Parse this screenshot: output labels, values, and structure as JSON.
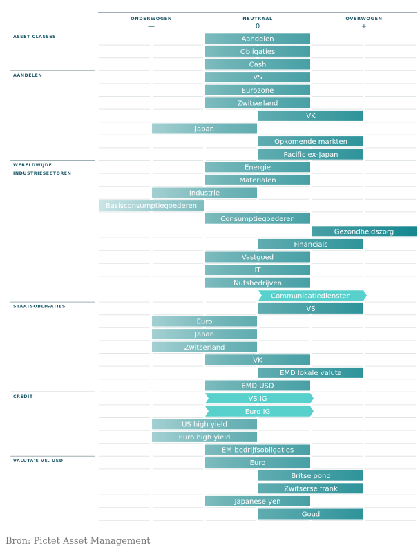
{
  "chart_data": {
    "type": "bar",
    "levels": [
      {
        "name": "ONDERWOGEN",
        "symbol": "—"
      },
      {
        "name": "NEUTRAAL",
        "symbol": "0"
      },
      {
        "name": "OVERWOGEN",
        "symbol": "+"
      }
    ],
    "sections": [
      {
        "title": "ASSET CLASSES",
        "rows": [
          {
            "label": "Aandelen",
            "from": 0,
            "to": 2
          },
          {
            "label": "Obligaties",
            "from": 0,
            "to": 2
          },
          {
            "label": "Cash",
            "from": 0,
            "to": 2
          }
        ]
      },
      {
        "title": "AANDELEN",
        "rows": [
          {
            "label": "VS",
            "from": 0,
            "to": 2
          },
          {
            "label": "Eurozone",
            "from": 0,
            "to": 2
          },
          {
            "label": "Zwitserland",
            "from": 0,
            "to": 2
          },
          {
            "label": "VK",
            "from": 1,
            "to": 3
          },
          {
            "label": "Japan",
            "from": -1,
            "to": 1
          },
          {
            "label": "Opkomende markten",
            "from": 1,
            "to": 3
          },
          {
            "label": "Pacific ex-Japan",
            "from": 1,
            "to": 3
          }
        ]
      },
      {
        "title": "WERELDWIJDE INDUSTRIESECTOREN",
        "title_lines": [
          "WERELDWIJDE",
          "INDUSTRIESECTOREN"
        ],
        "rows": [
          {
            "label": "Energie",
            "from": 0,
            "to": 2
          },
          {
            "label": "Materialen",
            "from": 0,
            "to": 2
          },
          {
            "label": "Industrie",
            "from": -1,
            "to": 1
          },
          {
            "label": "Basisconsumptiegoederen",
            "from": -2,
            "to": 0
          },
          {
            "label": "Consumptiegoederen",
            "from": 0,
            "to": 2
          },
          {
            "label": "Gezondheidszorg",
            "from": 2,
            "to": 4
          },
          {
            "label": "Financials",
            "from": 1,
            "to": 3
          },
          {
            "label": "Vastgoed",
            "from": 0,
            "to": 2
          },
          {
            "label": "IT",
            "from": 0,
            "to": 2
          },
          {
            "label": "Nutsbedrijven",
            "from": 0,
            "to": 2
          },
          {
            "label": "Communicatiediensten",
            "from": 1,
            "to": 3,
            "changed": true
          }
        ]
      },
      {
        "title": "STAATSOBLIGATIES",
        "rows": [
          {
            "label": "VS",
            "from": 1,
            "to": 3
          },
          {
            "label": "Euro",
            "from": -1,
            "to": 1
          },
          {
            "label": "Japan",
            "from": -1,
            "to": 1
          },
          {
            "label": "Zwitserland",
            "from": -1,
            "to": 1
          },
          {
            "label": "VK",
            "from": 0,
            "to": 2
          },
          {
            "label": "EMD lokale valuta",
            "from": 1,
            "to": 3
          },
          {
            "label": "EMD USD",
            "from": 0,
            "to": 2
          }
        ]
      },
      {
        "title": "CREDIT",
        "rows": [
          {
            "label": "VS IG",
            "from": 0,
            "to": 2,
            "changed": true
          },
          {
            "label": "Euro IG",
            "from": 0,
            "to": 2,
            "changed": true
          },
          {
            "label": "US high yield",
            "from": -1,
            "to": 1
          },
          {
            "label": "Euro high yield",
            "from": -1,
            "to": 1
          },
          {
            "label": "EM-bedrijfsobligaties",
            "from": 0,
            "to": 2
          }
        ]
      },
      {
        "title": "VALUTA'S VS. USD",
        "rows": [
          {
            "label": "Euro",
            "from": 0,
            "to": 2
          },
          {
            "label": "Britse pond",
            "from": 1,
            "to": 3
          },
          {
            "label": "Zwitserse frank",
            "from": 1,
            "to": 3
          },
          {
            "label": "Japanese yen",
            "from": 0,
            "to": 2
          },
          {
            "label": "Goud",
            "from": 1,
            "to": 3
          }
        ]
      }
    ],
    "xlim": [
      -2,
      4
    ],
    "grid": true,
    "colors": {
      "underweight_light": "#c9e4e5",
      "neutral": "#6fb4b7",
      "overweight_dark": "#15878f",
      "changed": "#58d0cc"
    }
  },
  "source": "Bron: Pictet Asset Management"
}
